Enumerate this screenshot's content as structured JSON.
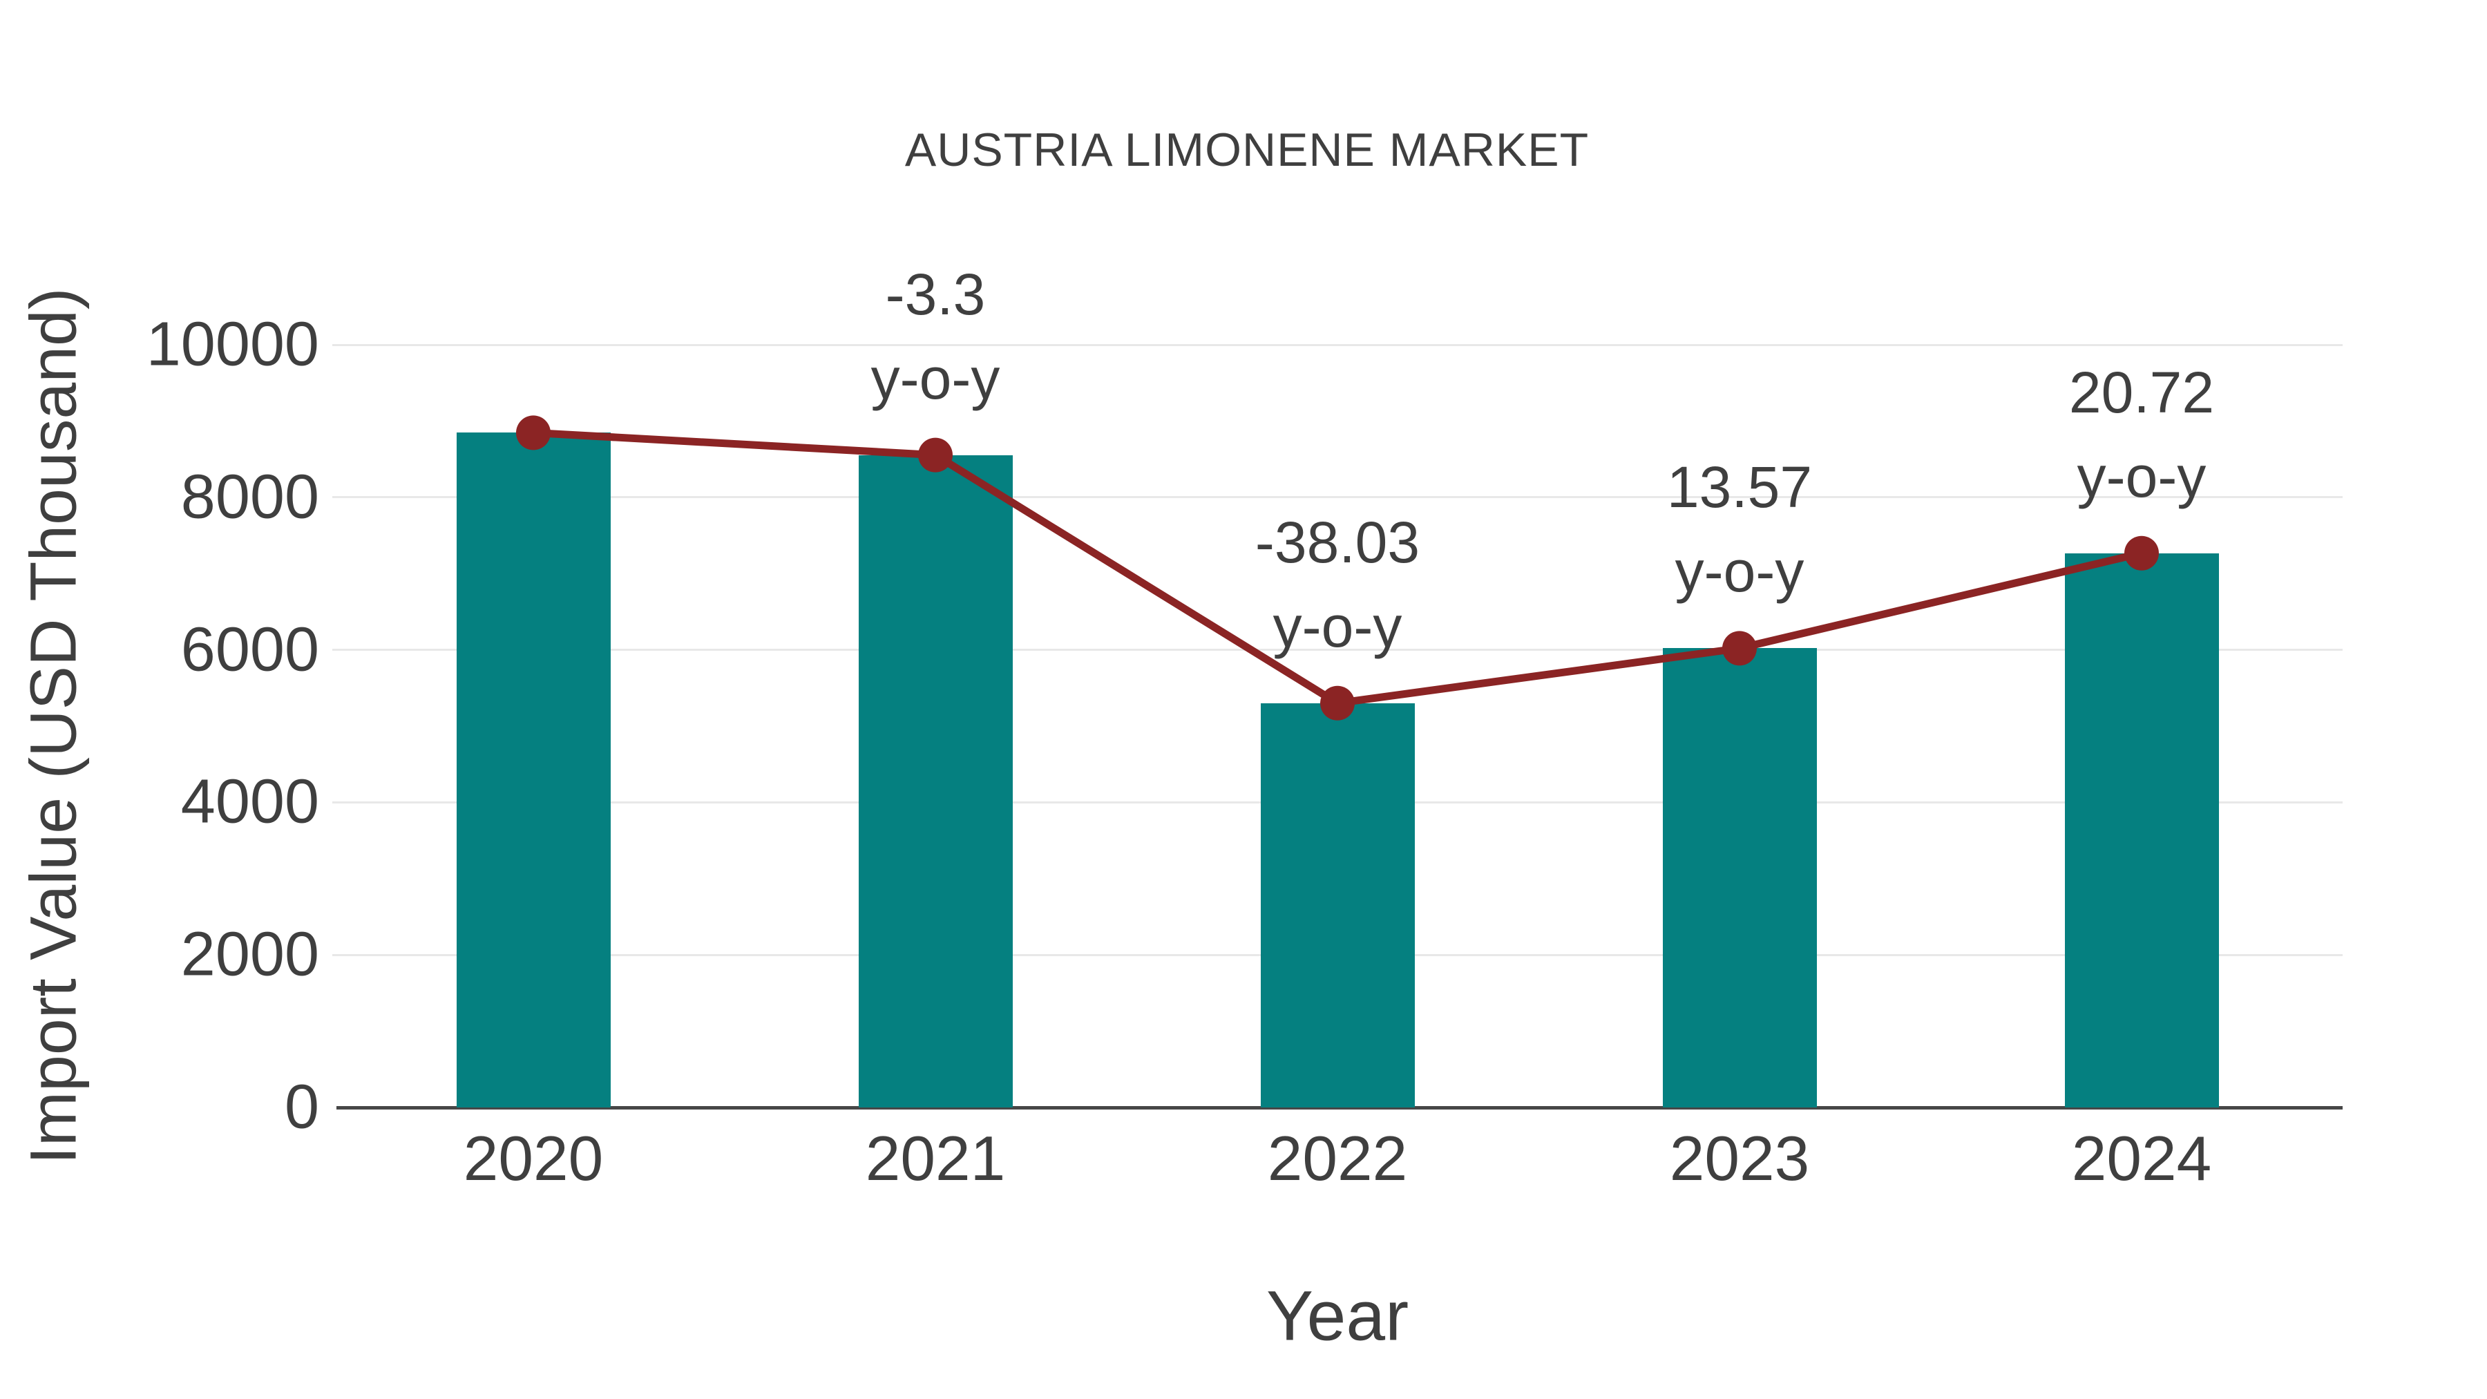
{
  "title": "AUSTRIA LIMONENE MARKET",
  "colors": {
    "bar": "#058080",
    "line": "#8b2424",
    "text": "#3f3f3f",
    "gridline": "#e8e8e8",
    "axis_line": "#474747",
    "background": "#ffffff"
  },
  "chart_data": {
    "type": "bar",
    "title": "AUSTRIA LIMONENE MARKET",
    "xlabel": "Year",
    "ylabel": "Import Value (USD Thousand)",
    "categories": [
      "2020",
      "2021",
      "2022",
      "2023",
      "2024"
    ],
    "series": [
      {
        "name": "Import Value (USD Thousand)",
        "type": "bar",
        "color": "#058080",
        "values": [
          8846,
          8554,
          5301,
          6020,
          7267
        ]
      },
      {
        "name": "y-o-y",
        "type": "line",
        "color": "#8b2424",
        "plotted_at_bar_tops": true,
        "values": [
          8846,
          8554,
          5301,
          6020,
          7267
        ],
        "growth_percent": [
          null,
          -3.3,
          -38.03,
          13.57,
          20.72
        ]
      }
    ],
    "annotations": [
      {
        "category": "2021",
        "lines": [
          "-3.3",
          "y-o-y"
        ]
      },
      {
        "category": "2022",
        "lines": [
          "-38.03",
          "y-o-y"
        ]
      },
      {
        "category": "2023",
        "lines": [
          "13.57",
          "y-o-y"
        ]
      },
      {
        "category": "2024",
        "lines": [
          "20.72",
          "y-o-y"
        ]
      }
    ],
    "ylim": [
      0,
      10000
    ],
    "yticks": [
      0,
      2000,
      4000,
      6000,
      8000,
      10000
    ],
    "ytick_labels": [
      "0",
      "2000",
      "4000",
      "6000",
      "8000",
      "10000"
    ],
    "grid": "horizontal",
    "legend": "none"
  }
}
